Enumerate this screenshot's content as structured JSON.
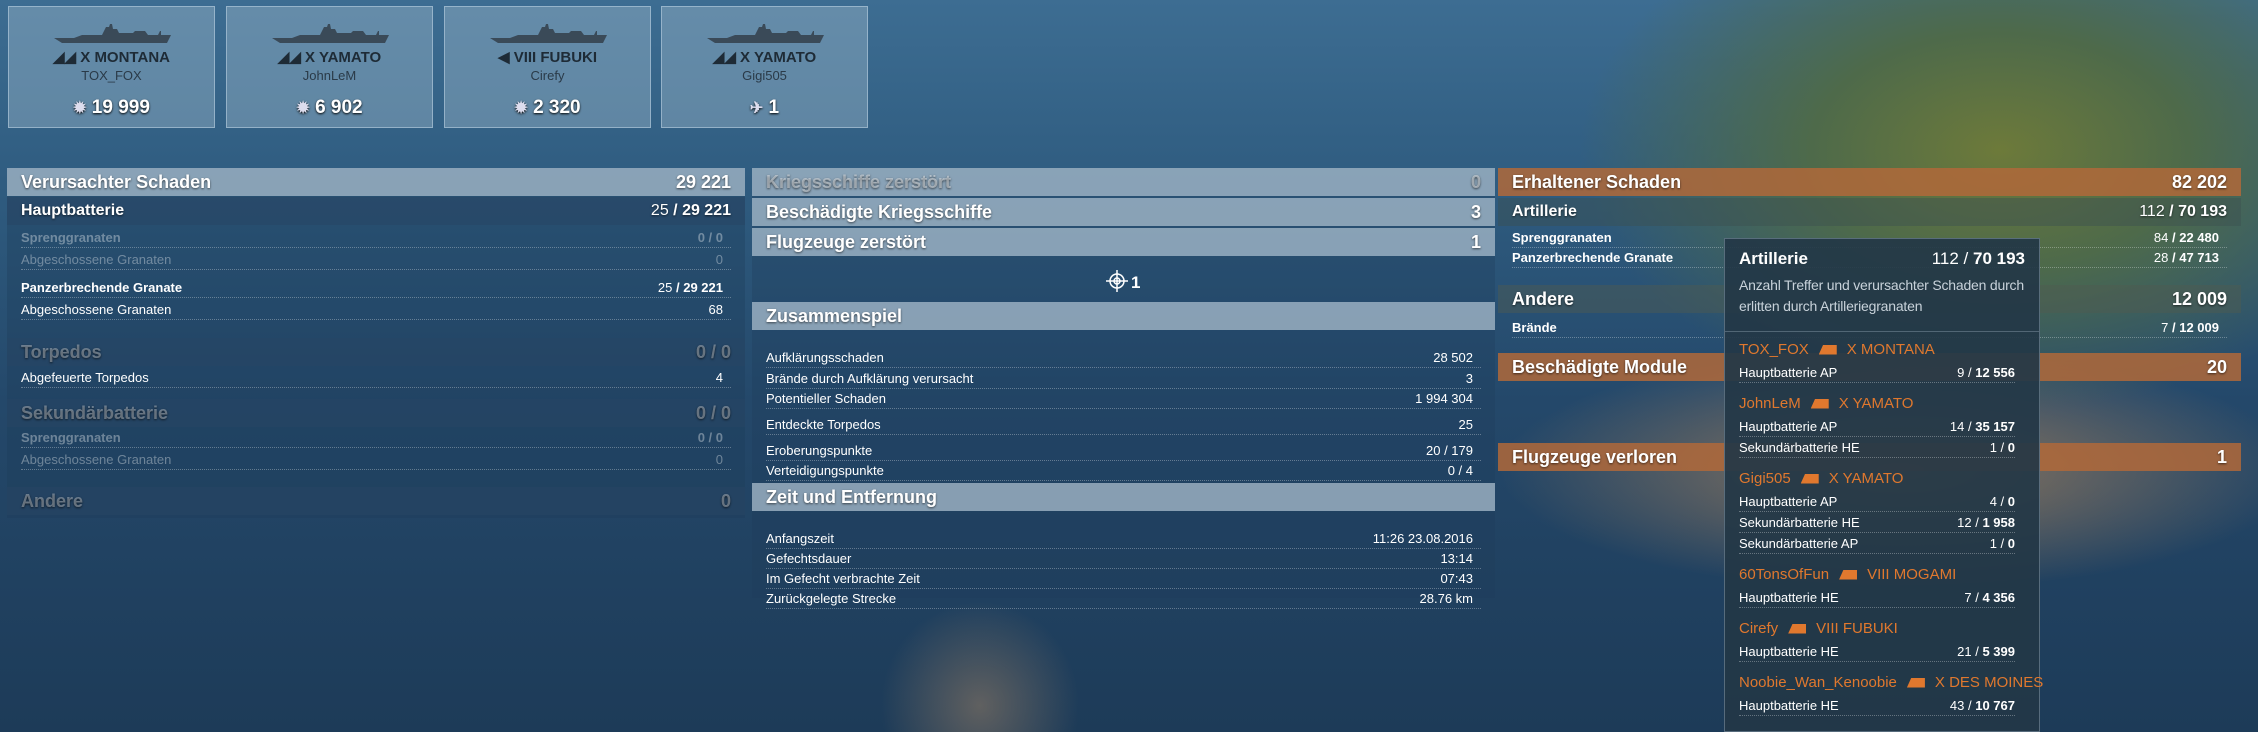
{
  "cards": [
    {
      "ship": "X MONTANA",
      "player": "TOX_FOX",
      "stat_icon": "damage-burst-icon",
      "stat": "19 999"
    },
    {
      "ship": "X YAMATO",
      "player": "JohnLeM",
      "stat_icon": "damage-burst-icon",
      "stat": "6 902"
    },
    {
      "ship": "VIII FUBUKI",
      "player": "Cirefy",
      "stat_icon": "damage-burst-icon",
      "stat": "2 320"
    },
    {
      "ship": "X YAMATO",
      "player": "Gigi505",
      "stat_icon": "plane-shot-down-icon",
      "stat": "1"
    }
  ],
  "dealt": {
    "title": "Verursachter Schaden",
    "total": "29 221",
    "main": {
      "label": "Hauptbatterie",
      "hits": "25",
      "dmg": "29 221"
    },
    "he": {
      "label": "Sprenggranaten",
      "hits": "0",
      "dmg": "0"
    },
    "he_fired": {
      "label": "Abgeschossene Granaten",
      "value": "0"
    },
    "ap": {
      "label": "Panzerbrechende Granate",
      "hits": "25",
      "dmg": "29 221"
    },
    "ap_fired": {
      "label": "Abgeschossene Granaten",
      "value": "68"
    },
    "torp": {
      "label": "Torpedos",
      "hits": "0",
      "dmg": "0"
    },
    "torp_fired": {
      "label": "Abgefeuerte Torpedos",
      "value": "4"
    },
    "sec": {
      "label": "Sekundärbatterie",
      "hits": "0",
      "dmg": "0"
    },
    "sec_he": {
      "label": "Sprenggranaten",
      "hits": "0",
      "dmg": "0"
    },
    "sec_fired": {
      "label": "Abgeschossene Granaten",
      "value": "0"
    },
    "other": {
      "label": "Andere",
      "value": "0"
    }
  },
  "mid": {
    "destroyed": {
      "label": "Kriegsschiffe zerstört",
      "value": "0"
    },
    "damaged": {
      "label": "Beschädigte Kriegsschiffe",
      "value": "3"
    },
    "planes": {
      "label": "Flugzeuge zerstört",
      "value": "1"
    },
    "crosshair_count": "1",
    "team": {
      "title": "Zusammenspiel",
      "rows": [
        {
          "label": "Aufklärungsschaden",
          "value": "28 502"
        },
        {
          "label": "Brände durch Aufklärung verursacht",
          "value": "3"
        },
        {
          "label": "Potentieller Schaden",
          "value": "1 994 304"
        },
        {
          "label": "Entdeckte Torpedos",
          "value": "25"
        },
        {
          "label": "Eroberungspunkte",
          "value": "20 / 179"
        },
        {
          "label": "Verteidigungspunkte",
          "value": "0 / 4"
        }
      ]
    },
    "time": {
      "title": "Zeit und Entfernung",
      "rows": [
        {
          "label": "Anfangszeit",
          "value": "11:26  23.08.2016"
        },
        {
          "label": "Gefechtsdauer",
          "value": "13:14"
        },
        {
          "label": "Im Gefecht verbrachte Zeit",
          "value": "07:43"
        },
        {
          "label": "Zurückgelegte Strecke",
          "value": "28.76 km"
        }
      ]
    }
  },
  "received": {
    "title": "Erhaltener Schaden",
    "total": "82 202",
    "art": {
      "label": "Artillerie",
      "hits": "112",
      "dmg": "70 193"
    },
    "he": {
      "label": "Sprenggranaten",
      "hits": "84",
      "dmg": "22 480"
    },
    "ap": {
      "label": "Panzerbrechende Granate",
      "hits": "28",
      "dmg": "47 713"
    },
    "other": {
      "label": "Andere",
      "value": "12 009"
    },
    "fires": {
      "label": "Brände",
      "hits": "7",
      "dmg": "12 009"
    },
    "modules": {
      "label": "Beschädigte Module",
      "value": "20"
    },
    "planes_lost": {
      "label": "Flugzeuge verloren",
      "value": "1"
    }
  },
  "tooltip": {
    "title": "Artillerie",
    "hits": "112",
    "dmg": "70 193",
    "description": "Anzahl Treffer und verursachter Schaden durch erlitten durch Artilleriegranaten",
    "accent": "#e0782e",
    "players": [
      {
        "name": "TOX_FOX",
        "ship": "X MONTANA",
        "rows": [
          {
            "label": "Hauptbatterie AP",
            "hits": "9",
            "dmg": "12 556"
          }
        ]
      },
      {
        "name": "JohnLeM",
        "ship": "X YAMATO",
        "rows": [
          {
            "label": "Hauptbatterie AP",
            "hits": "14",
            "dmg": "35 157"
          },
          {
            "label": "Sekundärbatterie HE",
            "hits": "1",
            "dmg": "0"
          }
        ]
      },
      {
        "name": "Gigi505",
        "ship": "X YAMATO",
        "rows": [
          {
            "label": "Hauptbatterie AP",
            "hits": "4",
            "dmg": "0"
          },
          {
            "label": "Sekundärbatterie HE",
            "hits": "12",
            "dmg": "1 958"
          },
          {
            "label": "Sekundärbatterie AP",
            "hits": "1",
            "dmg": "0"
          }
        ]
      },
      {
        "name": "60TonsOfFun",
        "ship": "VIII MOGAMI",
        "rows": [
          {
            "label": "Hauptbatterie HE",
            "hits": "7",
            "dmg": "4 356"
          }
        ]
      },
      {
        "name": "Cirefy",
        "ship": "VIII FUBUKI",
        "rows": [
          {
            "label": "Hauptbatterie HE",
            "hits": "21",
            "dmg": "5 399"
          }
        ]
      },
      {
        "name": "Noobie_Wan_Kenoobie",
        "ship": "X DES MOINES",
        "rows": [
          {
            "label": "Hauptbatterie HE",
            "hits": "43",
            "dmg": "10 767"
          }
        ]
      }
    ]
  }
}
